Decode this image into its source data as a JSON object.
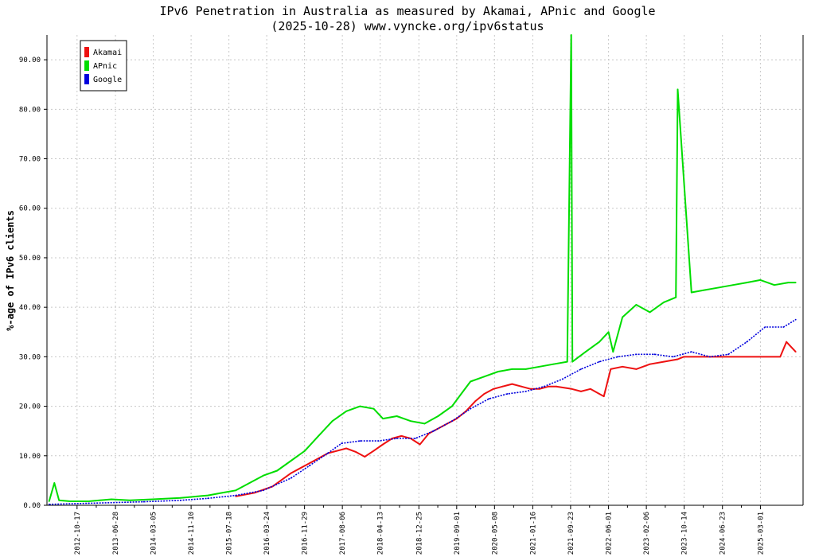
{
  "chart_data": {
    "type": "line",
    "title": "IPv6 Penetration in Australia as measured by Akamai, APnic and Google",
    "subtitle": "(2025-10-28) www.vyncke.org/ipv6status",
    "xlabel": "",
    "ylabel": "%-age of IPv6 clients",
    "xlim": [
      "2012-04-01",
      "2025-12-08"
    ],
    "ylim": [
      0,
      95
    ],
    "grid": true,
    "legend_position": "top-left",
    "x_ticks": [
      "2012-10-17",
      "2013-06-28",
      "2014-03-05",
      "2014-11-10",
      "2015-07-18",
      "2016-03-24",
      "2016-11-29",
      "2017-08-06",
      "2018-04-13",
      "2018-12-25",
      "2019-09-01",
      "2020-05-08",
      "2021-01-16",
      "2021-09-23",
      "2022-06-01",
      "2023-02-06",
      "2023-10-14",
      "2024-06-23",
      "2025-03-01"
    ],
    "y_ticks": [
      "0.00",
      "10.00",
      "20.00",
      "30.00",
      "40.00",
      "50.00",
      "60.00",
      "70.00",
      "80.00",
      "90.00"
    ],
    "series": [
      {
        "name": "Akamai",
        "color": "#ee1111",
        "x": [
          "2015-09-01",
          "2016-01-01",
          "2016-05-01",
          "2016-09-01",
          "2017-01-01",
          "2017-05-01",
          "2017-09-01",
          "2017-11-01",
          "2018-01-01",
          "2018-03-01",
          "2018-05-01",
          "2018-07-01",
          "2018-09-01",
          "2018-11-01",
          "2019-01-01",
          "2019-03-01",
          "2019-05-01",
          "2019-07-01",
          "2019-09-01",
          "2019-11-01",
          "2020-01-01",
          "2020-03-01",
          "2020-05-01",
          "2020-07-01",
          "2020-09-01",
          "2020-11-01",
          "2021-01-01",
          "2021-03-01",
          "2021-05-01",
          "2021-06-20",
          "2021-10-01",
          "2021-12-01",
          "2022-02-01",
          "2022-04-01",
          "2022-05-01",
          "2022-06-15",
          "2022-09-01",
          "2022-12-01",
          "2023-03-01",
          "2023-06-01",
          "2023-09-01",
          "2023-10-10",
          "2025-07-10",
          "2025-08-20",
          "2025-10-20"
        ],
        "y": [
          1.8,
          2.5,
          3.8,
          6.5,
          8.5,
          10.5,
          11.5,
          10.8,
          9.8,
          11.0,
          12.3,
          13.5,
          14.0,
          13.5,
          12.3,
          14.5,
          15.5,
          16.5,
          17.5,
          19.0,
          21.0,
          22.5,
          23.5,
          24.0,
          24.5,
          24.0,
          23.5,
          23.5,
          24.0,
          24.0,
          23.5,
          23.0,
          23.5,
          22.5,
          22.0,
          27.5,
          28.0,
          27.5,
          28.5,
          29.0,
          29.5,
          30.0,
          30.0,
          33.0,
          31.0
        ]
      },
      {
        "name": "APnic",
        "color": "#00dd00",
        "x": [
          "2012-04-15",
          "2012-05-20",
          "2012-06-20",
          "2012-09-01",
          "2013-01-01",
          "2013-06-01",
          "2013-10-01",
          "2014-03-01",
          "2014-09-01",
          "2015-03-01",
          "2015-06-01",
          "2015-09-01",
          "2015-12-01",
          "2016-03-01",
          "2016-06-01",
          "2016-09-01",
          "2016-12-01",
          "2017-03-01",
          "2017-06-01",
          "2017-09-01",
          "2017-12-01",
          "2018-03-01",
          "2018-05-01",
          "2018-08-01",
          "2018-11-01",
          "2019-02-01",
          "2019-05-01",
          "2019-08-01",
          "2019-10-01",
          "2019-12-01",
          "2020-03-01",
          "2020-06-01",
          "2020-09-01",
          "2020-12-01",
          "2021-03-01",
          "2021-06-01",
          "2021-09-01",
          "2021-09-27",
          "2021-10-05",
          "2022-01-01",
          "2022-04-01",
          "2022-06-01",
          "2022-07-01",
          "2022-09-01",
          "2022-12-01",
          "2023-03-01",
          "2023-06-01",
          "2023-08-20",
          "2023-09-01",
          "2023-12-01",
          "2024-03-01",
          "2024-06-01",
          "2024-09-01",
          "2024-12-01",
          "2025-03-01",
          "2025-06-01",
          "2025-09-01",
          "2025-10-20"
        ],
        "y": [
          0.8,
          4.5,
          1.0,
          0.8,
          0.8,
          1.2,
          1.0,
          1.2,
          1.5,
          2.0,
          2.5,
          3.0,
          4.5,
          6.0,
          7.0,
          9.0,
          11.0,
          14.0,
          17.0,
          19.0,
          20.0,
          19.5,
          17.5,
          18.0,
          17.0,
          16.5,
          18.0,
          20.0,
          22.5,
          25.0,
          26.0,
          27.0,
          27.5,
          27.5,
          28.0,
          28.5,
          29.0,
          95.0,
          29.0,
          31.0,
          33.0,
          35.0,
          31.0,
          38.0,
          40.5,
          39.0,
          41.0,
          42.0,
          84.0,
          43.0,
          43.5,
          44.0,
          44.5,
          45.0,
          45.5,
          44.5,
          45.0,
          45.0
        ]
      },
      {
        "name": "Google",
        "color": "#0000dd",
        "x": [
          "2012-04-15",
          "2013-01-01",
          "2014-01-01",
          "2014-09-01",
          "2015-03-01",
          "2015-09-01",
          "2016-03-01",
          "2016-09-01",
          "2017-01-01",
          "2017-05-01",
          "2017-08-01",
          "2017-12-01",
          "2018-04-01",
          "2018-08-01",
          "2018-12-01",
          "2019-04-01",
          "2019-08-01",
          "2019-12-01",
          "2020-04-01",
          "2020-08-01",
          "2020-12-01",
          "2021-04-01",
          "2021-08-01",
          "2021-12-01",
          "2022-04-01",
          "2022-08-01",
          "2022-12-01",
          "2023-04-01",
          "2023-08-01",
          "2023-12-01",
          "2024-04-01",
          "2024-08-01",
          "2024-12-01",
          "2025-04-01",
          "2025-08-01",
          "2025-10-20"
        ],
        "y": [
          0.2,
          0.4,
          0.7,
          1.0,
          1.4,
          2.0,
          3.0,
          5.5,
          8.0,
          10.5,
          12.5,
          13.0,
          13.0,
          13.5,
          13.5,
          15.0,
          17.0,
          19.5,
          21.5,
          22.5,
          23.0,
          24.0,
          25.5,
          27.5,
          29.0,
          30.0,
          30.5,
          30.5,
          30.0,
          31.0,
          30.0,
          30.5,
          33.0,
          36.0,
          36.0,
          37.5
        ]
      }
    ]
  }
}
